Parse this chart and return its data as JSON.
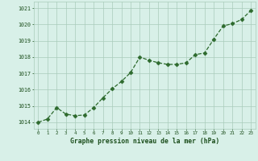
{
  "hours": [
    0,
    1,
    2,
    3,
    4,
    5,
    6,
    7,
    8,
    9,
    10,
    11,
    12,
    13,
    14,
    15,
    16,
    17,
    18,
    19,
    20,
    21,
    22,
    23
  ],
  "pressure": [
    1014.0,
    1014.2,
    1014.9,
    1014.5,
    1014.4,
    1014.45,
    1014.9,
    1015.5,
    1016.05,
    1016.5,
    1017.05,
    1018.0,
    1017.8,
    1017.65,
    1017.55,
    1017.55,
    1017.65,
    1018.15,
    1018.25,
    1019.1,
    1019.9,
    1020.05,
    1020.3,
    1020.85
  ],
  "line_color": "#2d6a2d",
  "marker": "D",
  "marker_size": 2.5,
  "bg_color": "#d8f0e8",
  "grid_color": "#aaccbb",
  "xlabel": "Graphe pression niveau de la mer (hPa)",
  "xlabel_color": "#1a4d1a",
  "tick_color": "#1a4d1a",
  "ylabel_ticks": [
    1014,
    1015,
    1016,
    1017,
    1018,
    1019,
    1020,
    1021
  ],
  "ylim": [
    1013.6,
    1021.4
  ],
  "xlim": [
    -0.5,
    23.5
  ],
  "linewidth": 0.9,
  "linestyle": "--"
}
